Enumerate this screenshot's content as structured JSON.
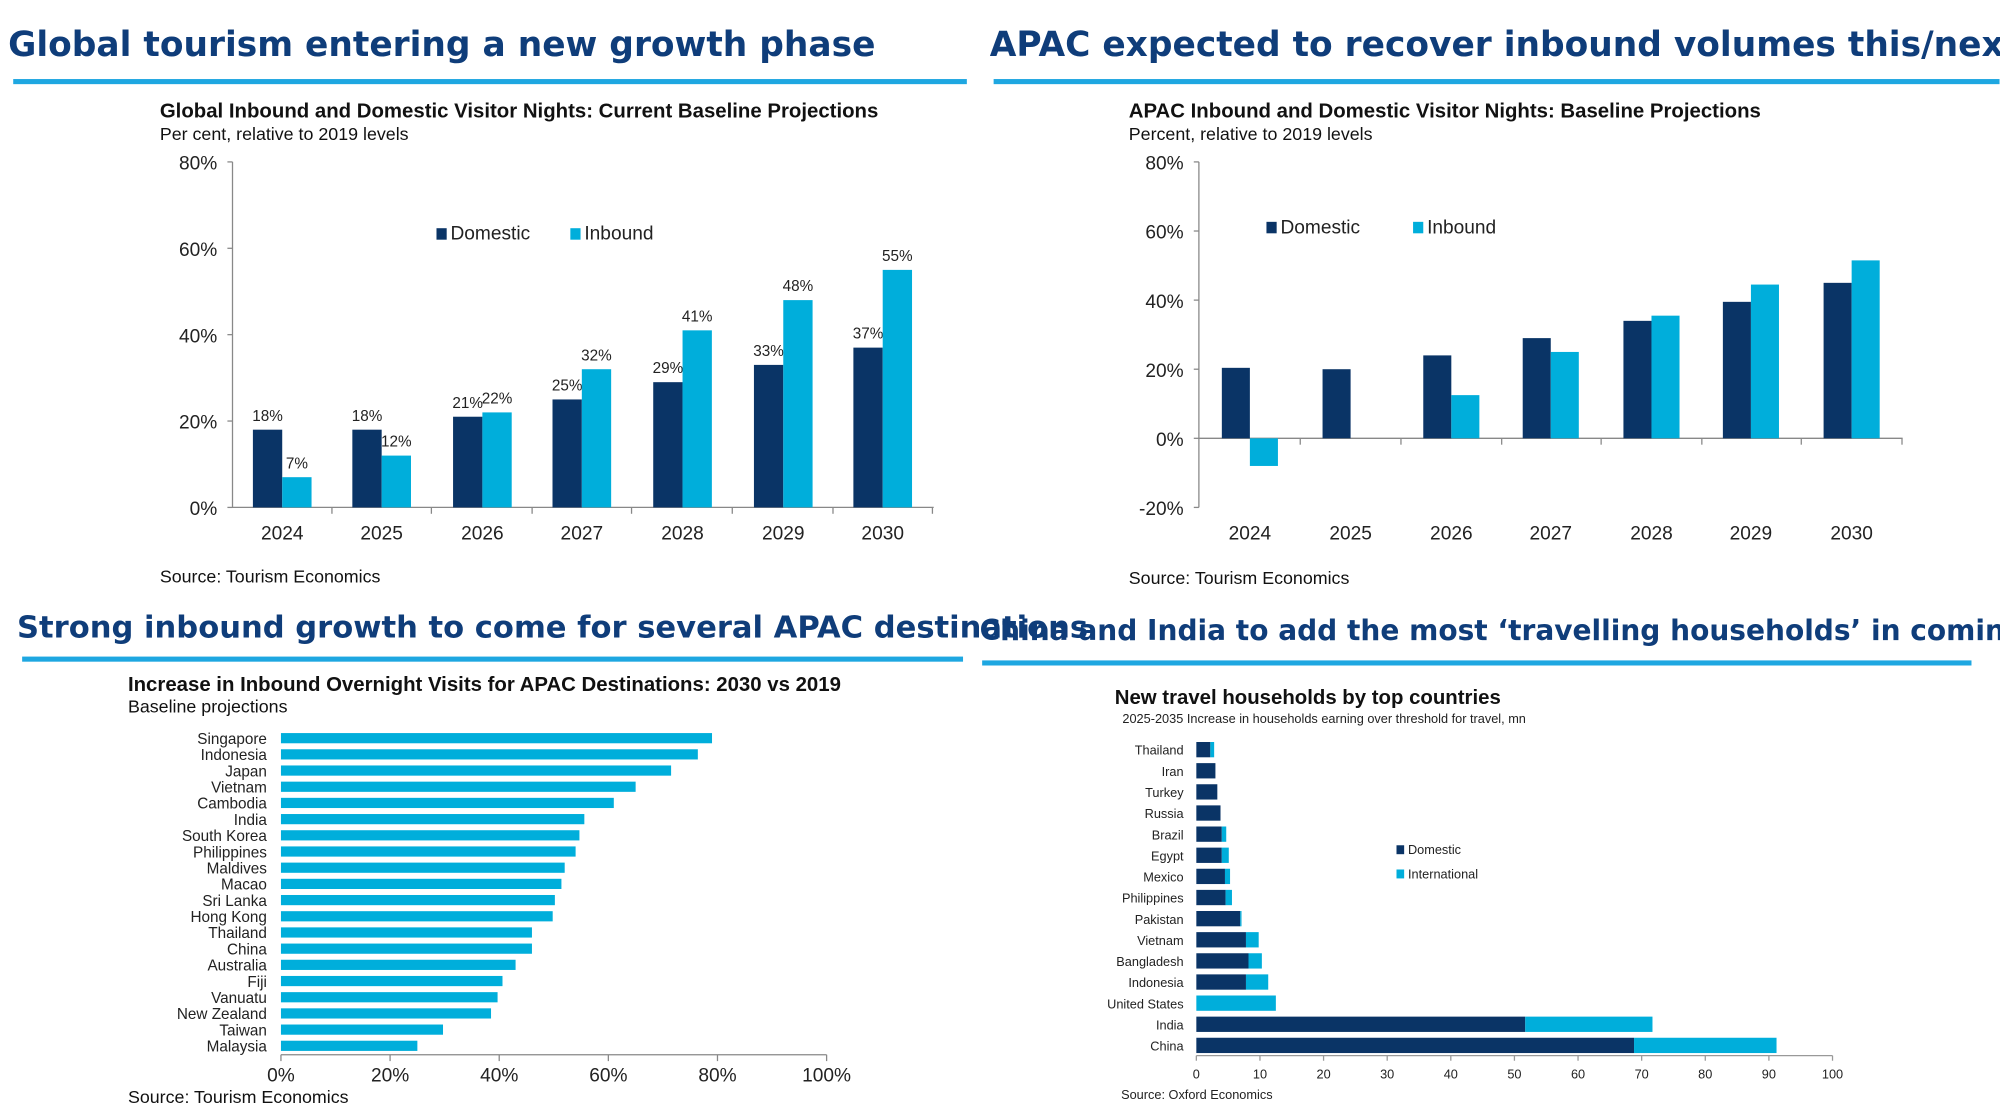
{
  "colors": {
    "domestic": "#0a3466",
    "inbound": "#00aedb",
    "headline": "#0f3d7a",
    "rule": "#1ea7e1"
  },
  "headlines": [
    "Global tourism entering a new growth phase",
    "APAC expected to recover inbound volumes this/next year",
    "Strong inbound growth to come for several APAC destinations",
    "China and India to add the most ‘travelling households’ in coming decade"
  ],
  "chart_data": [
    {
      "type": "bar",
      "title": "Global Inbound and Domestic Visitor Nights: Current Baseline Projections",
      "subtitle": "Per cent, relative to 2019 levels",
      "categories": [
        "2024",
        "2025",
        "2026",
        "2027",
        "2028",
        "2029",
        "2030"
      ],
      "series": [
        {
          "name": "Domestic",
          "values": [
            18,
            18,
            21,
            25,
            29,
            33,
            37
          ],
          "labels": [
            "18%",
            "18%",
            "21%",
            "25%",
            "29%",
            "33%",
            "37%"
          ]
        },
        {
          "name": "Inbound",
          "values": [
            7,
            12,
            22,
            32,
            41,
            48,
            55
          ],
          "labels": [
            "7%",
            "12%",
            "22%",
            "32%",
            "41%",
            "48%",
            "55%"
          ]
        }
      ],
      "ylim": [
        0,
        80
      ],
      "yticks": [
        "0%",
        "20%",
        "40%",
        "60%",
        "80%"
      ],
      "legend": "top-center",
      "source": "Source: Tourism Economics"
    },
    {
      "type": "bar",
      "title": "APAC Inbound and Domestic Visitor Nights: Baseline Projections",
      "subtitle": "Percent, relative to 2019 levels",
      "categories": [
        "2024",
        "2025",
        "2026",
        "2027",
        "2028",
        "2029",
        "2030"
      ],
      "series": [
        {
          "name": "Domestic",
          "values": [
            20.4,
            20,
            24,
            29,
            34,
            39.5,
            45
          ]
        },
        {
          "name": "Inbound",
          "values": [
            -8,
            0,
            12.5,
            25,
            35.5,
            44.5,
            51.5
          ]
        }
      ],
      "ylim": [
        -20,
        80
      ],
      "yticks": [
        "-20%",
        "0%",
        "20%",
        "40%",
        "60%",
        "80%"
      ],
      "legend": "top-left",
      "source": "Source: Tourism Economics"
    },
    {
      "type": "bar",
      "orientation": "horizontal",
      "title": "Increase in Inbound Overnight Visits for APAC Destinations: 2030 vs 2019",
      "subtitle": "Baseline projections",
      "categories": [
        "Singapore",
        "Indonesia",
        "Japan",
        "Vietnam",
        "Cambodia",
        "India",
        "South Korea",
        "Philippines",
        "Maldives",
        "Macao",
        "Sri Lanka",
        "Hong Kong",
        "Thailand",
        "China",
        "Australia",
        "Fiji",
        "Vanuatu",
        "New Zealand",
        "Taiwan",
        "Malaysia"
      ],
      "values": [
        79,
        76.4,
        71.5,
        65,
        61,
        55.6,
        54.7,
        54,
        52,
        51.4,
        50.2,
        49.8,
        46,
        46,
        43,
        40.6,
        39.7,
        38.5,
        29.7,
        25
      ],
      "xlim": [
        0,
        100
      ],
      "xticks": [
        "0%",
        "20%",
        "40%",
        "60%",
        "80%",
        "100%"
      ],
      "source": "Source: Tourism Economics"
    },
    {
      "type": "bar",
      "orientation": "horizontal",
      "stacked": true,
      "title": "New travel households by top countries",
      "subtitle": "2025-2035 Increase in households earning over threshold for travel, mn",
      "categories": [
        "Thailand",
        "Iran",
        "Turkey",
        "Russia",
        "Brazil",
        "Egypt",
        "Mexico",
        "Philippines",
        "Pakistan",
        "Vietnam",
        "Bangladesh",
        "Indonesia",
        "United States",
        "India",
        "China"
      ],
      "series": [
        {
          "name": "Domestic",
          "values": [
            2.2,
            3,
            3.3,
            3.8,
            4,
            4,
            4.5,
            4.6,
            6.9,
            7.8,
            8.2,
            7.8,
            0,
            51.7,
            68.8
          ]
        },
        {
          "name": "International",
          "values": [
            0.6,
            0,
            0,
            0,
            0.7,
            1.1,
            0.8,
            1,
            0.2,
            2,
            2.1,
            3.5,
            12.5,
            20,
            22.4
          ]
        }
      ],
      "xlim": [
        0,
        100
      ],
      "xticks": [
        "0",
        "10",
        "20",
        "30",
        "40",
        "50",
        "60",
        "70",
        "80",
        "90",
        "100"
      ],
      "legend": "center-right",
      "source": "Source: Oxford Economics"
    }
  ]
}
